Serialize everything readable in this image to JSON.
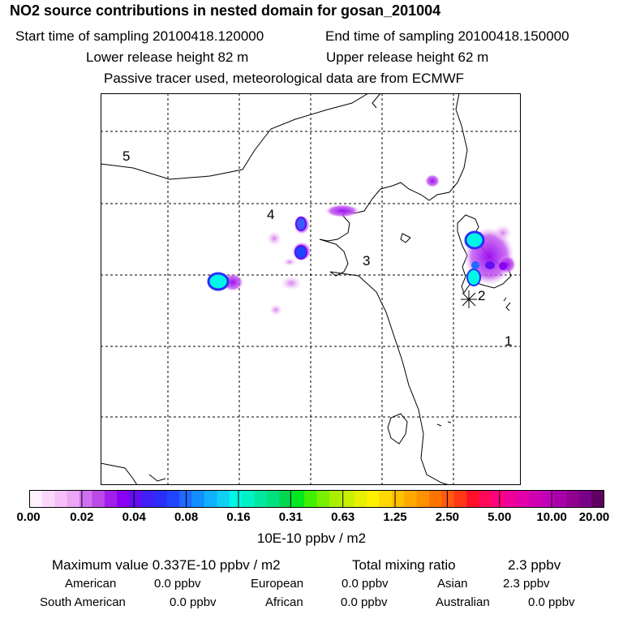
{
  "title": "NO2 source contributions in nested domain for gosan_201004",
  "header": {
    "start": "Start time of sampling 20100418.120000",
    "end": "End time of sampling 20100418.150000",
    "lower": "Lower release height   82 m",
    "upper": "Upper release height   62 m",
    "note": "Passive tracer used, meteorological data are from ECMWF"
  },
  "map": {
    "labels": [
      "5",
      "4",
      "3",
      "2",
      "1"
    ]
  },
  "colorbar": {
    "ticks": [
      "0.00",
      "0.02",
      "0.04",
      "0.08",
      "0.16",
      "0.31",
      "0.63",
      "1.25",
      "2.50",
      "5.00",
      "10.00",
      "20.00"
    ],
    "units": "10E-10 ppbv / m2",
    "colors": [
      "#fff0ff",
      "#fbd8fb",
      "#f5c0f7",
      "#eda6f3",
      "#d070f0",
      "#bb4ae8",
      "#a21eea",
      "#8a00f2",
      "#6010f0",
      "#4020f6",
      "#2a2ef8",
      "#1f45ff",
      "#1f6bff",
      "#138fff",
      "#10b0ff",
      "#10d0f4",
      "#00f6e6",
      "#00f0c8",
      "#00e8a0",
      "#00e080",
      "#00d850",
      "#00e820",
      "#40f000",
      "#78f000",
      "#a8f000",
      "#c8f000",
      "#e6f000",
      "#fff000",
      "#ffd800",
      "#ffc000",
      "#ffa800",
      "#ff9000",
      "#ff7400",
      "#ff5a10",
      "#ff3818",
      "#ff1028",
      "#ff0a5a",
      "#ff0080",
      "#f0009a",
      "#e200a8",
      "#d000b0",
      "#c000b8",
      "#a800a8",
      "#900090",
      "#7a0088",
      "#600060"
    ]
  },
  "summary": {
    "maximum": "Maximum value  0.337E-10 ppbv / m2",
    "total_label": "Total mixing ratio",
    "total_value": "2.3 ppbv",
    "regions": [
      {
        "name": "American",
        "value": "0.0 ppbv"
      },
      {
        "name": "European",
        "value": "0.0 ppbv"
      },
      {
        "name": "Asian",
        "value": "2.3 ppbv"
      },
      {
        "name": "South American",
        "value": "0.0 ppbv"
      },
      {
        "name": "African",
        "value": "0.0 ppbv"
      },
      {
        "name": "Australian",
        "value": "0.0 ppbv"
      }
    ]
  }
}
